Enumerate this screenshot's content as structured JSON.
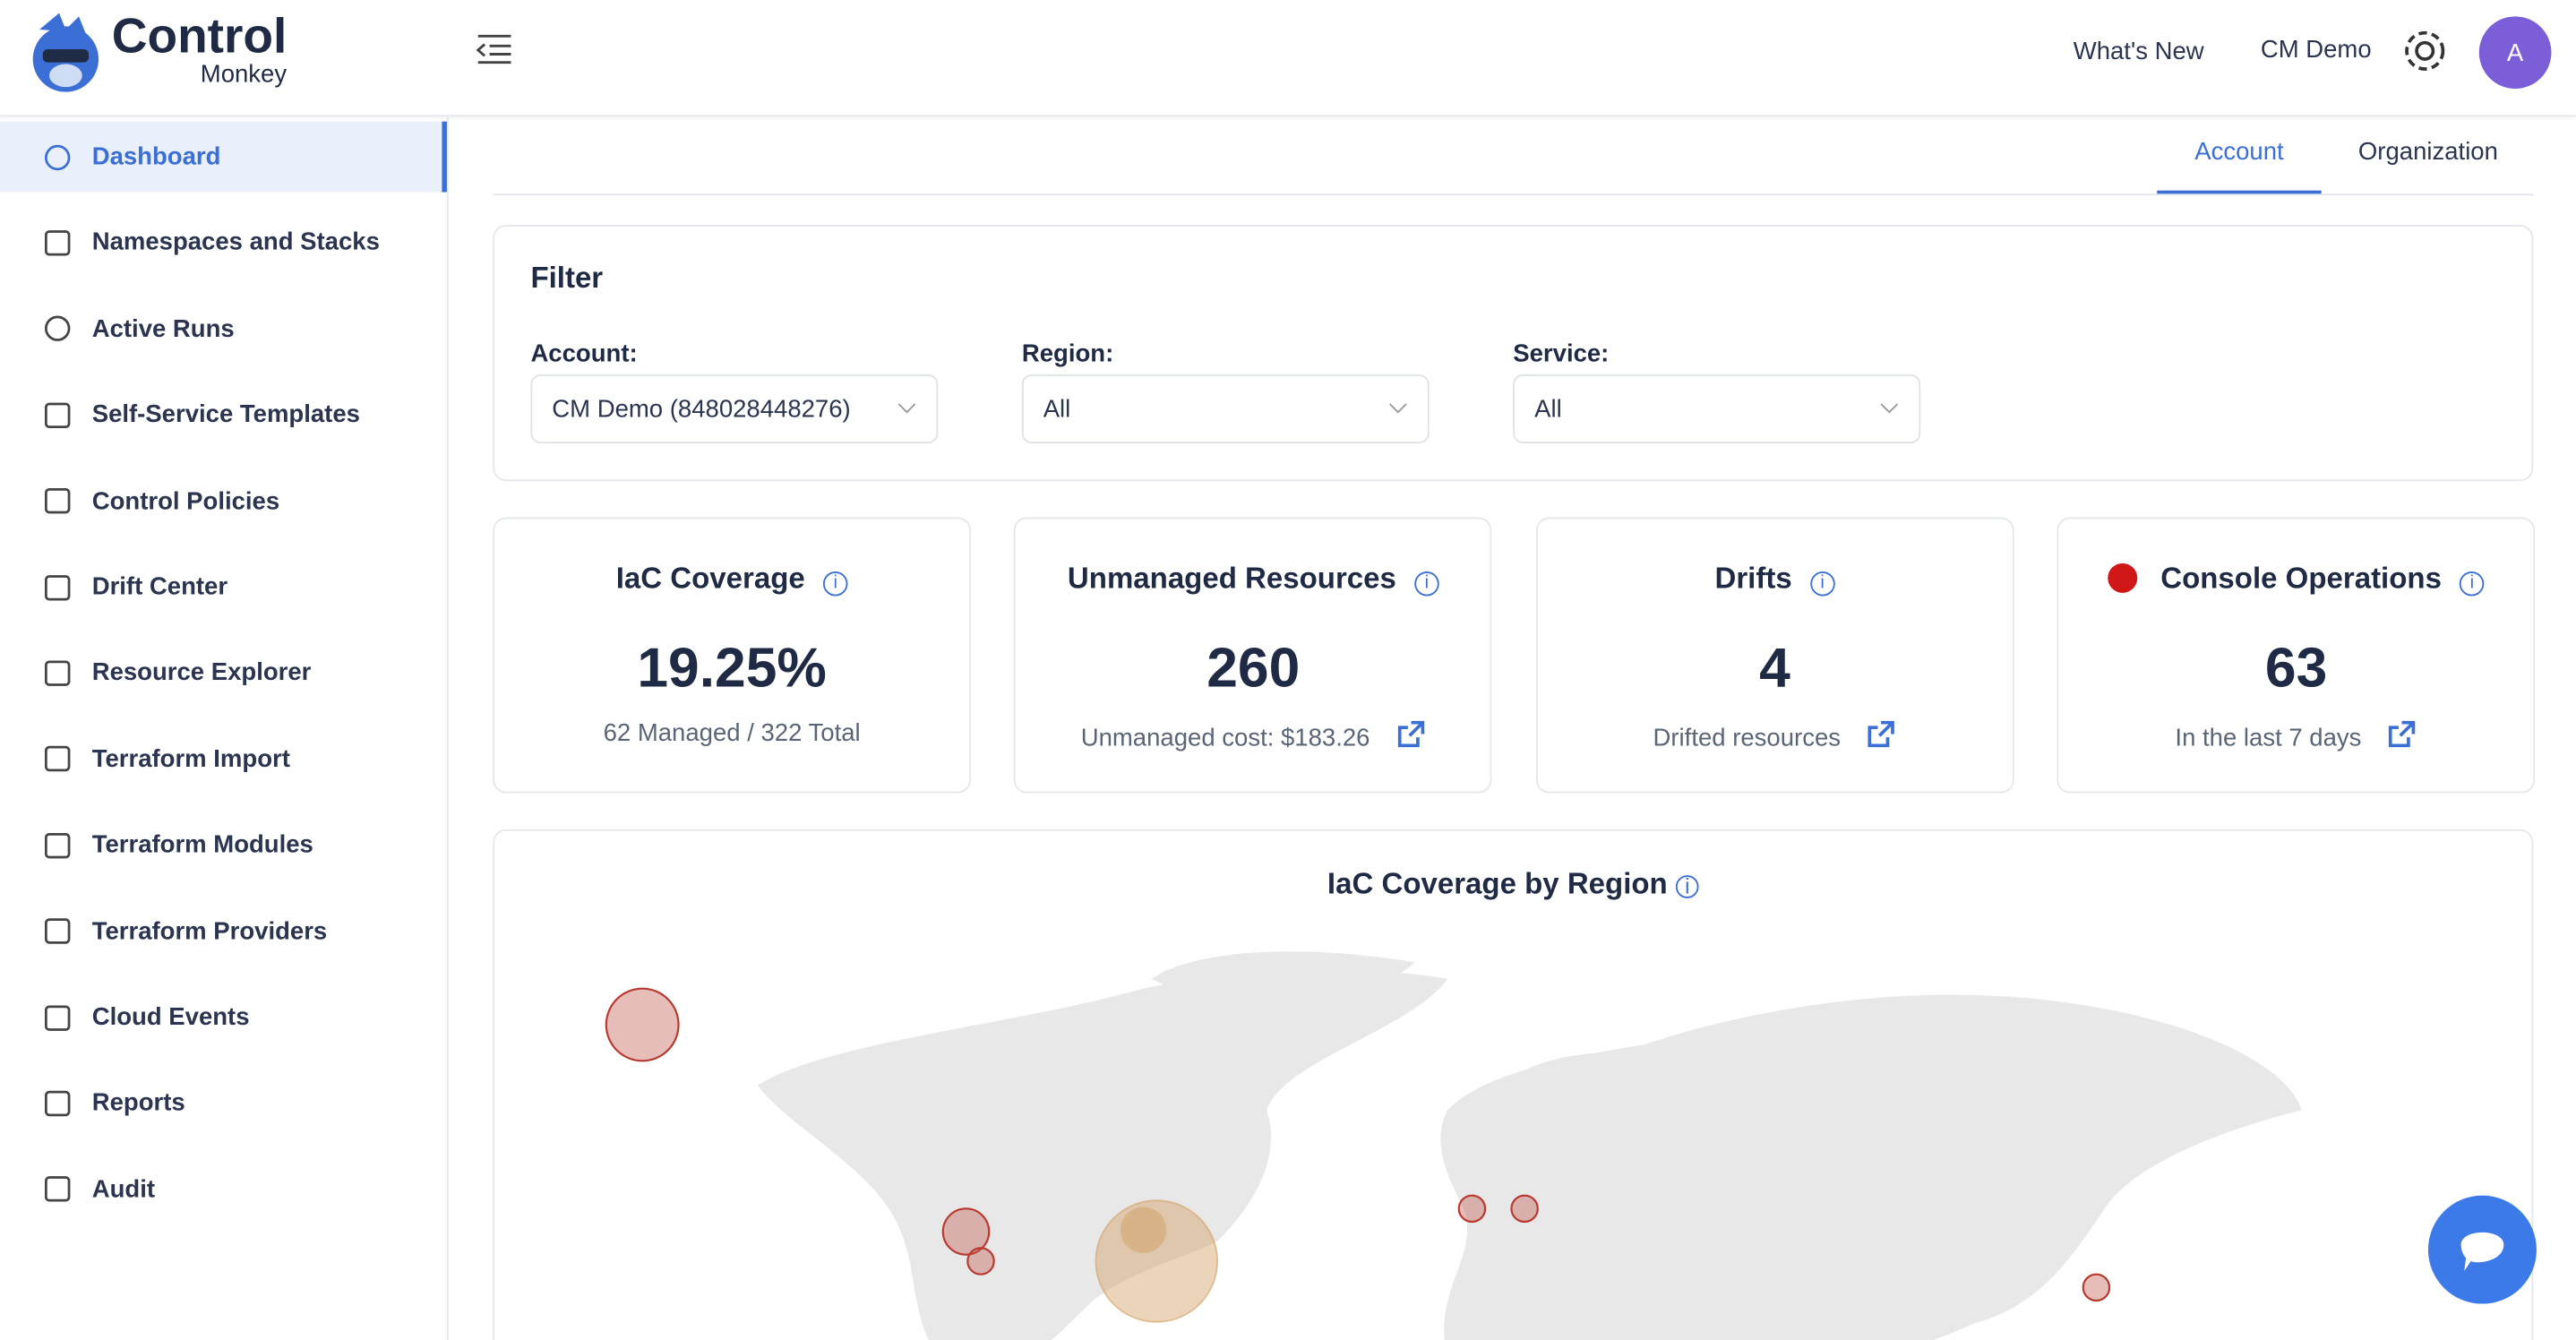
{
  "header": {
    "logo": {
      "line1": "Control",
      "line2": "Monkey"
    },
    "links": [
      "What's New",
      "CM Demo"
    ],
    "avatar": "A"
  },
  "sidebar": {
    "items": [
      "Dashboard",
      "Namespaces and Stacks",
      "Active Runs",
      "Self-Service Templates",
      "Control Policies",
      "Drift Center",
      "Resource Explorer",
      "Terraform Import",
      "Terraform Modules",
      "Terraform Providers",
      "Cloud Events",
      "Reports",
      "Audit"
    ]
  },
  "tabs": [
    "Account",
    "Organization"
  ],
  "filter": {
    "title": "Filter",
    "fields": [
      {
        "label": "Account:",
        "value": "CM Demo (848028448276)"
      },
      {
        "label": "Region:",
        "value": "All"
      },
      {
        "label": "Service:",
        "value": "All"
      }
    ]
  },
  "cards": [
    {
      "title": "IaC Coverage",
      "value": "19.25%",
      "caption": "62 Managed / 322 Total"
    },
    {
      "title": "Unmanaged Resources",
      "value": "260",
      "caption": "Unmanaged cost: $183.26"
    },
    {
      "title": "Drifts",
      "value": "4",
      "caption": "Drifted resources"
    },
    {
      "title": "Console Operations",
      "value": "63",
      "caption": "In the last 7 days"
    }
  ],
  "map": {
    "title": "IaC Coverage by Region"
  }
}
